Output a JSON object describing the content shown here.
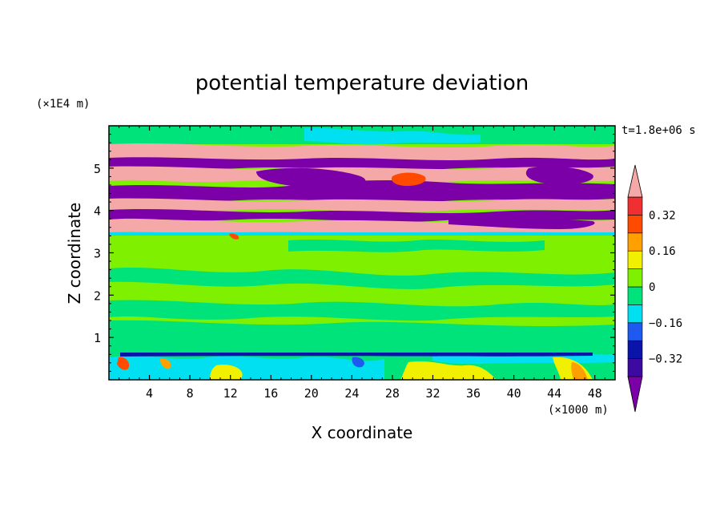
{
  "chart_data": {
    "type": "heatmap",
    "title": "potential temperature deviation",
    "xlabel": "X coordinate",
    "ylabel": "Z coordinate",
    "x_unit": "(×1000 m)",
    "y_unit": "(×1E4 m)",
    "time_label": "t=1.8e+06 s",
    "xlim": [
      0,
      50
    ],
    "ylim": [
      0,
      6
    ],
    "x_ticks": [
      4,
      8,
      12,
      16,
      20,
      24,
      28,
      32,
      36,
      40,
      44,
      48
    ],
    "y_ticks": [
      1,
      2,
      3,
      4,
      5
    ],
    "colorbar": {
      "levels": [
        -0.4,
        -0.32,
        -0.24,
        -0.16,
        -0.08,
        0,
        0.08,
        0.16,
        0.24,
        0.32,
        0.4
      ],
      "tick_labels": [
        {
          "value": 0.32,
          "label": "0.32"
        },
        {
          "value": 0.16,
          "label": "0.16"
        },
        {
          "value": 0,
          "label": "0"
        },
        {
          "value": -0.16,
          "label": "−0.16"
        },
        {
          "value": -0.32,
          "label": "−0.32"
        }
      ],
      "colors": [
        "#7b00a8",
        "#3c0aa0",
        "#0a14a8",
        "#1e5af0",
        "#00e0f0",
        "#00e37a",
        "#7ef000",
        "#f0f000",
        "#ffa000",
        "#ff4a00",
        "#f03030",
        "#f4a8a8"
      ],
      "extend": "both"
    }
  }
}
